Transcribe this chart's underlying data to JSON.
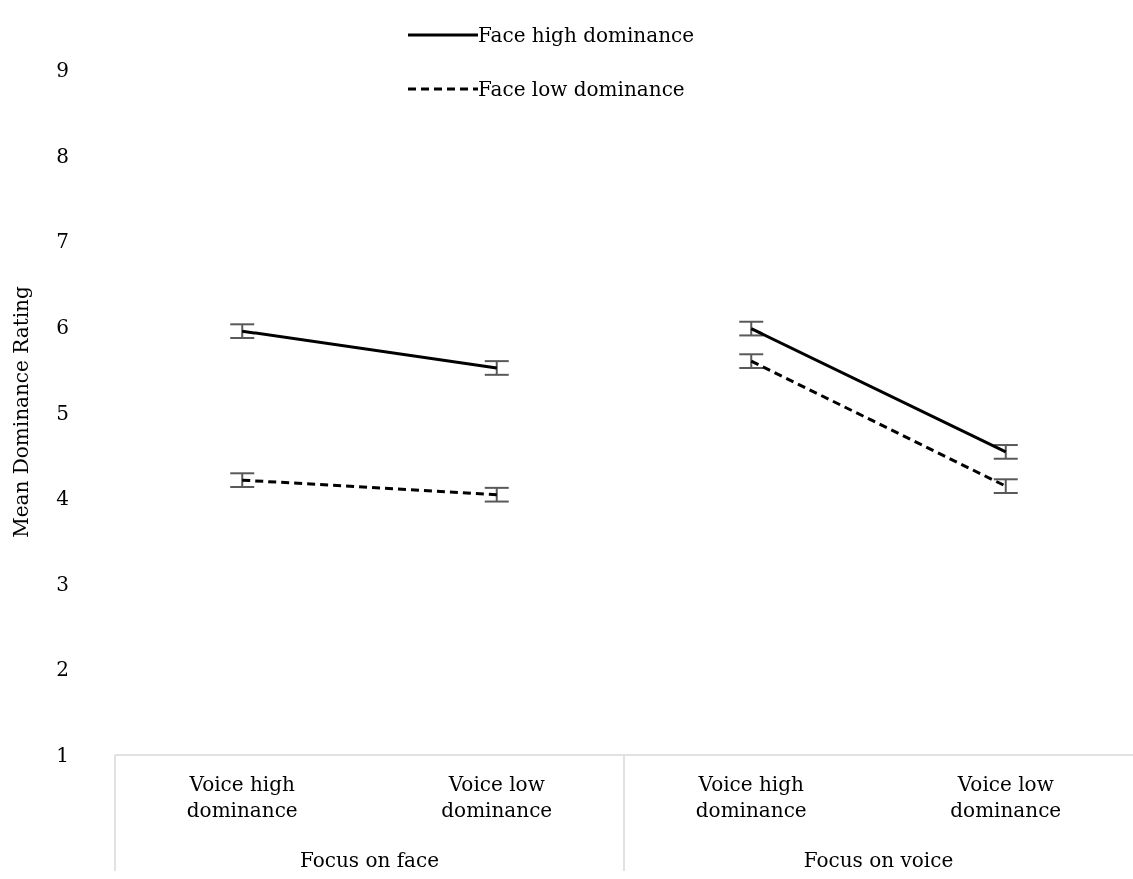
{
  "chart_data": {
    "type": "line",
    "ylabel": "Mean Dominance Rating",
    "categories": [
      "Voice high dominance",
      "Voice low dominance",
      "Voice high dominance",
      "Voice low dominance"
    ],
    "series": [
      {
        "name": "Face high dominance",
        "color": "#000000",
        "line_style": "solid",
        "values": [
          5.95,
          5.52,
          5.98,
          4.54
        ],
        "errors": [
          0.08,
          0.08,
          0.08,
          0.08
        ]
      },
      {
        "name": "Face low dominance",
        "color": "#000000",
        "line_style": "dashed",
        "values": [
          4.21,
          4.04,
          5.6,
          4.14
        ],
        "errors": [
          0.08,
          0.08,
          0.08,
          0.08
        ]
      }
    ],
    "ylim": [
      1,
      9
    ],
    "yticks": [
      1,
      2,
      3,
      4,
      5,
      6,
      7,
      8,
      9
    ],
    "grid": false,
    "legend": "top",
    "marker": "none",
    "annotations": [
      "Focus on face",
      "Focus on voice"
    ]
  }
}
